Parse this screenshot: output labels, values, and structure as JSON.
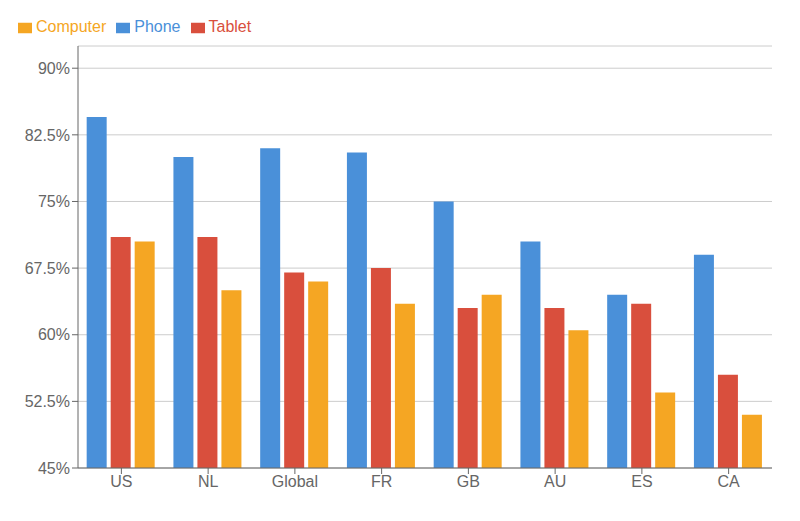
{
  "chart_data": {
    "type": "bar",
    "categories": [
      "US",
      "NL",
      "Global",
      "FR",
      "GB",
      "AU",
      "ES",
      "CA"
    ],
    "series": [
      {
        "name": "Phone",
        "color": "#4A90D9",
        "values": [
          84.5,
          80.0,
          81.0,
          80.5,
          75.0,
          70.5,
          64.5,
          69.0
        ]
      },
      {
        "name": "Tablet",
        "color": "#D94F3D",
        "values": [
          71.0,
          71.0,
          67.0,
          67.5,
          63.0,
          63.0,
          63.5,
          55.5
        ]
      },
      {
        "name": "Computer",
        "color": "#F5A623",
        "values": [
          70.5,
          65.0,
          66.0,
          63.5,
          64.5,
          60.5,
          53.5,
          51.0
        ]
      }
    ],
    "ylim": [
      45.0,
      92.5
    ],
    "yticks": [
      {
        "value": 45.0,
        "label": "45%"
      },
      {
        "value": 52.5,
        "label": "52.5%"
      },
      {
        "value": 60.0,
        "label": "60%"
      },
      {
        "value": 67.5,
        "label": "67.5%"
      },
      {
        "value": 75.0,
        "label": "75%"
      },
      {
        "value": 82.5,
        "label": "82.5%"
      },
      {
        "value": 90.0,
        "label": "90%"
      }
    ],
    "grid": true,
    "legend": "upper left"
  }
}
